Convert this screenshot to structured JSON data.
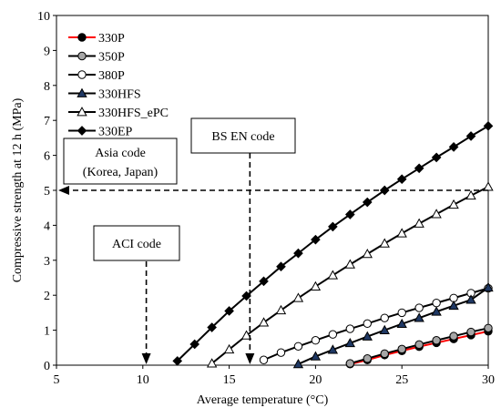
{
  "chart_data": {
    "type": "line",
    "xlabel": "Average temperature (°C)",
    "ylabel": "Compressive strength at 12 h (MPa)",
    "xlim": [
      5,
      30
    ],
    "ylim": [
      0,
      10
    ],
    "xticks": [
      "5",
      "10",
      "15",
      "20",
      "25",
      "30"
    ],
    "yticks": [
      "0",
      "1",
      "2",
      "3",
      "4",
      "5",
      "6",
      "7",
      "8",
      "9",
      "10"
    ],
    "grid": false,
    "legend_position": "top-left",
    "series": [
      {
        "name": "330P",
        "marker": "filled-circle",
        "marker_fill": "#000000",
        "line_color": "#ff0000",
        "x": [
          22,
          23,
          24,
          25,
          26,
          27,
          28,
          29,
          30
        ],
        "y": [
          0.03,
          0.15,
          0.29,
          0.41,
          0.53,
          0.64,
          0.75,
          0.86,
          0.97
        ]
      },
      {
        "name": "350P",
        "marker": "filled-circle",
        "marker_fill": "#a6a6a6",
        "line_color": "#000000",
        "x": [
          22,
          23,
          24,
          25,
          26,
          27,
          28,
          29,
          30
        ],
        "y": [
          0.05,
          0.19,
          0.33,
          0.46,
          0.59,
          0.71,
          0.83,
          0.95,
          1.06
        ]
      },
      {
        "name": "380P",
        "marker": "open-circle",
        "marker_fill": "#ffffff",
        "line_color": "#000000",
        "x": [
          17,
          18,
          19,
          20,
          21,
          22,
          23,
          24,
          25,
          26,
          27,
          28,
          29,
          30
        ],
        "y": [
          0.15,
          0.36,
          0.54,
          0.71,
          0.88,
          1.04,
          1.19,
          1.35,
          1.5,
          1.64,
          1.78,
          1.92,
          2.06,
          2.2
        ]
      },
      {
        "name": "330HFS",
        "marker": "filled-triangle",
        "marker_fill": "#1f3864",
        "line_color": "#000000",
        "x": [
          19,
          20,
          21,
          22,
          23,
          24,
          25,
          26,
          27,
          28,
          29,
          30
        ],
        "y": [
          0.03,
          0.25,
          0.44,
          0.63,
          0.82,
          1.0,
          1.18,
          1.35,
          1.53,
          1.7,
          1.87,
          2.22
        ]
      },
      {
        "name": "330HFS_ePC",
        "marker": "open-triangle",
        "marker_fill": "#ffffff",
        "line_color": "#000000",
        "x": [
          14,
          15,
          16,
          17,
          18,
          19,
          20,
          21,
          22,
          23,
          24,
          25,
          26,
          27,
          28,
          29,
          30
        ],
        "y": [
          0.05,
          0.45,
          0.85,
          1.22,
          1.57,
          1.92,
          2.25,
          2.57,
          2.88,
          3.18,
          3.48,
          3.77,
          4.05,
          4.32,
          4.59,
          4.85,
          5.1
        ]
      },
      {
        "name": "330EP",
        "marker": "filled-diamond",
        "marker_fill": "#000000",
        "line_color": "#000000",
        "x": [
          12,
          13,
          14,
          15,
          16,
          17,
          18,
          19,
          20,
          21,
          22,
          23,
          24,
          25,
          26,
          27,
          28,
          29,
          30
        ],
        "y": [
          0.12,
          0.6,
          1.08,
          1.55,
          1.98,
          2.4,
          2.82,
          3.2,
          3.59,
          3.96,
          4.31,
          4.66,
          5.0,
          5.32,
          5.63,
          5.94,
          6.24,
          6.55,
          6.84
        ]
      }
    ],
    "annotations": {
      "asia": {
        "line1": "Asia code",
        "line2": "(Korea, Japan)",
        "value": 5
      },
      "bs": {
        "label": "BS EN code",
        "value": 16.2
      },
      "aci": {
        "label": "ACI code",
        "value": 10.2
      }
    }
  }
}
